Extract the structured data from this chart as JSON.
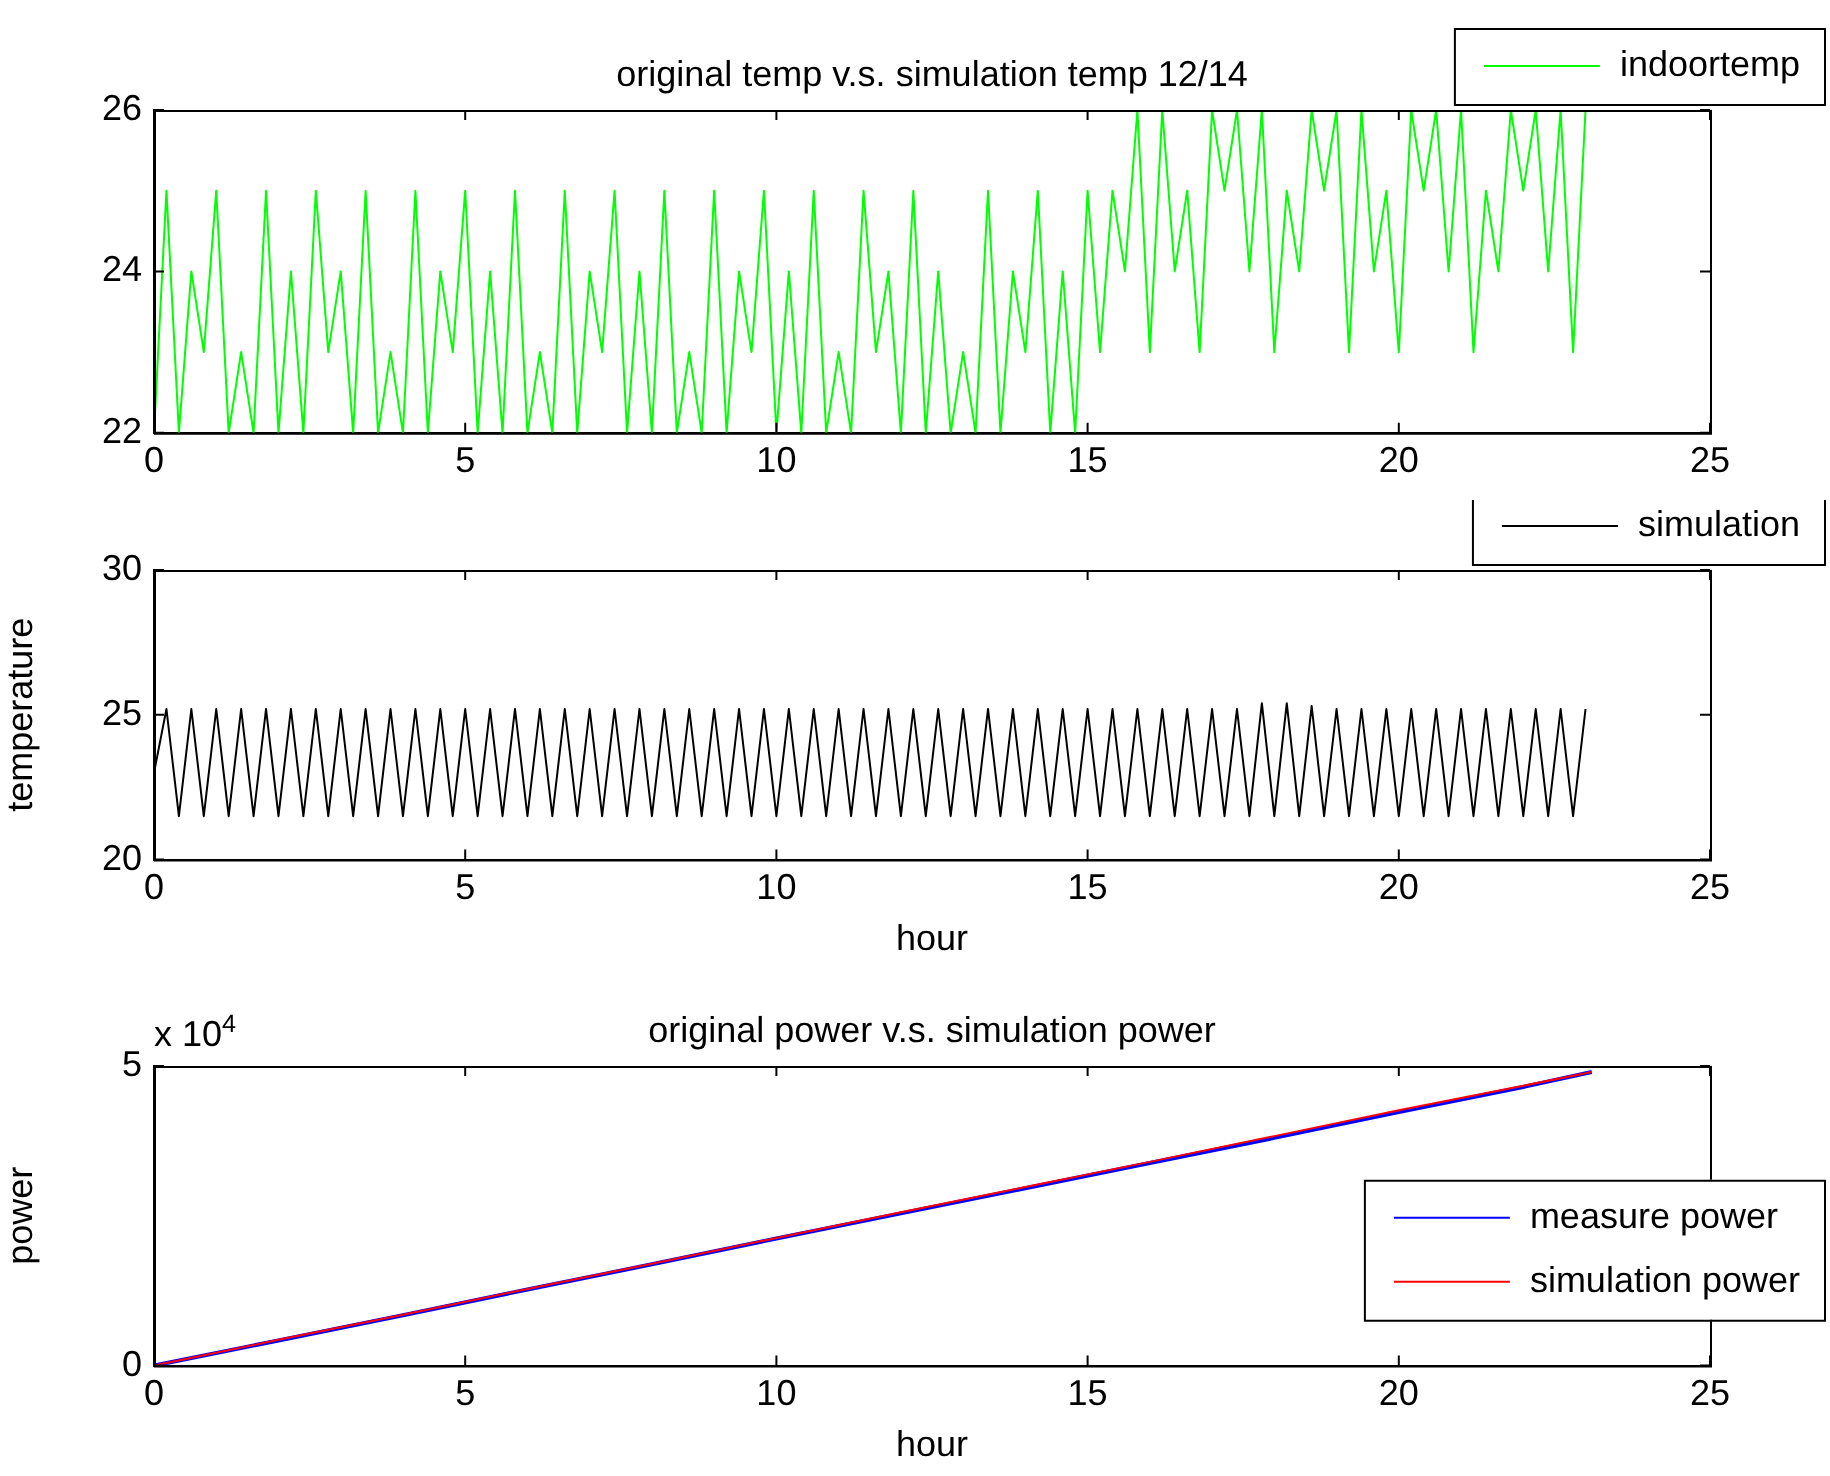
{
  "chart_data": [
    {
      "type": "line",
      "title": "original temp v.s. simulation temp 12/14",
      "legend": "top right",
      "grid": false,
      "x": [
        0,
        0.2,
        0.4,
        0.6,
        0.8,
        1,
        1.2,
        1.4,
        1.6,
        1.8,
        2,
        2.2,
        2.4,
        2.6,
        2.8,
        3,
        3.2,
        3.4,
        3.6,
        3.8,
        4,
        4.2,
        4.4,
        4.6,
        4.8,
        5,
        5.2,
        5.4,
        5.6,
        5.8,
        6,
        6.2,
        6.4,
        6.6,
        6.8,
        7,
        7.2,
        7.4,
        7.6,
        7.8,
        8,
        8.2,
        8.4,
        8.6,
        8.8,
        9,
        9.2,
        9.4,
        9.6,
        9.8,
        10,
        10.2,
        10.4,
        10.6,
        10.8,
        11,
        11.2,
        11.4,
        11.6,
        11.8,
        12,
        12.2,
        12.4,
        12.6,
        12.8,
        13,
        13.2,
        13.4,
        13.6,
        13.8,
        14,
        14.2,
        14.4,
        14.6,
        14.8,
        15,
        15.2,
        15.4,
        15.6,
        15.8,
        16,
        16.2,
        16.4,
        16.6,
        16.8,
        17,
        17.2,
        17.4,
        17.6,
        17.8,
        18,
        18.2,
        18.4,
        18.6,
        18.8,
        19,
        19.2,
        19.4,
        19.6,
        19.8,
        20,
        20.2,
        20.4,
        20.6,
        20.8,
        21,
        21.2,
        21.4,
        21.6,
        21.8,
        22,
        22.2,
        22.4,
        22.6,
        22.8,
        23
      ],
      "xlim": [
        0,
        25
      ],
      "xticks": [
        0,
        5,
        10,
        15,
        20,
        25
      ],
      "ylim": [
        22,
        26
      ],
      "yticks": [
        22,
        24,
        26
      ],
      "series": [
        {
          "name": "indoortemp",
          "color": "#00ff00",
          "values": [
            22,
            25,
            22,
            24,
            23,
            25,
            22,
            23,
            22,
            25,
            22,
            24,
            22,
            25,
            23,
            24,
            22,
            25,
            22,
            23,
            22,
            25,
            22,
            24,
            23,
            25,
            22,
            24,
            22,
            25,
            22,
            23,
            22,
            25,
            22,
            24,
            23,
            25,
            22,
            24,
            22,
            25,
            22,
            23,
            22,
            25,
            22,
            24,
            23,
            25,
            22,
            24,
            22,
            25,
            22,
            23,
            22,
            25,
            23,
            24,
            22,
            25,
            22,
            24,
            22,
            23,
            22,
            25,
            22,
            24,
            23,
            25,
            22,
            24,
            22,
            25,
            23,
            25,
            24,
            26,
            23,
            26,
            24,
            25,
            23,
            26,
            25,
            26,
            24,
            26,
            23,
            25,
            24,
            26,
            25,
            26,
            23,
            26,
            24,
            25,
            23,
            26,
            25,
            26,
            24,
            26,
            23,
            25,
            24,
            26,
            25,
            26,
            24,
            26,
            23,
            26
          ]
        }
      ]
    },
    {
      "type": "line",
      "legend": "top right",
      "grid": false,
      "xlabel": "hour",
      "ylabel": "temperature",
      "x": [
        0,
        0.2,
        0.4,
        0.6,
        0.8,
        1,
        1.2,
        1.4,
        1.6,
        1.8,
        2,
        2.2,
        2.4,
        2.6,
        2.8,
        3,
        3.2,
        3.4,
        3.6,
        3.8,
        4,
        4.2,
        4.4,
        4.6,
        4.8,
        5,
        5.2,
        5.4,
        5.6,
        5.8,
        6,
        6.2,
        6.4,
        6.6,
        6.8,
        7,
        7.2,
        7.4,
        7.6,
        7.8,
        8,
        8.2,
        8.4,
        8.6,
        8.8,
        9,
        9.2,
        9.4,
        9.6,
        9.8,
        10,
        10.2,
        10.4,
        10.6,
        10.8,
        11,
        11.2,
        11.4,
        11.6,
        11.8,
        12,
        12.2,
        12.4,
        12.6,
        12.8,
        13,
        13.2,
        13.4,
        13.6,
        13.8,
        14,
        14.2,
        14.4,
        14.6,
        14.8,
        15,
        15.2,
        15.4,
        15.6,
        15.8,
        16,
        16.2,
        16.4,
        16.6,
        16.8,
        17,
        17.2,
        17.4,
        17.6,
        17.8,
        18,
        18.2,
        18.4,
        18.6,
        18.8,
        19,
        19.2,
        19.4,
        19.6,
        19.8,
        20,
        20.2,
        20.4,
        20.6,
        20.8,
        21,
        21.2,
        21.4,
        21.6,
        21.8,
        22,
        22.2,
        22.4,
        22.6,
        22.8,
        23
      ],
      "xlim": [
        0,
        25
      ],
      "xticks": [
        0,
        5,
        10,
        15,
        20,
        25
      ],
      "ylim": [
        20,
        30
      ],
      "yticks": [
        20,
        25,
        30
      ],
      "series": [
        {
          "name": "simulation",
          "color": "#000000",
          "values": [
            23,
            25.2,
            21.5,
            25.2,
            21.5,
            25.2,
            21.5,
            25.2,
            21.5,
            25.2,
            21.5,
            25.2,
            21.5,
            25.2,
            21.5,
            25.2,
            21.5,
            25.2,
            21.5,
            25.2,
            21.5,
            25.2,
            21.5,
            25.2,
            21.5,
            25.2,
            21.5,
            25.2,
            21.5,
            25.2,
            21.5,
            25.2,
            21.5,
            25.2,
            21.5,
            25.2,
            21.5,
            25.2,
            21.5,
            25.2,
            21.5,
            25.2,
            21.5,
            25.2,
            21.5,
            25.2,
            21.5,
            25.2,
            21.5,
            25.2,
            21.5,
            25.2,
            21.5,
            25.2,
            21.5,
            25.2,
            21.5,
            25.2,
            21.5,
            25.2,
            21.5,
            25.2,
            21.5,
            25.2,
            21.5,
            25.2,
            21.5,
            25.2,
            21.5,
            25.2,
            21.5,
            25.2,
            21.5,
            25.2,
            21.5,
            25.2,
            21.5,
            25.2,
            21.5,
            25.2,
            21.5,
            25.2,
            21.5,
            25.2,
            21.5,
            25.2,
            21.5,
            25.2,
            21.5,
            25.4,
            21.5,
            25.4,
            21.5,
            25.3,
            21.5,
            25.2,
            21.5,
            25.2,
            21.5,
            25.2,
            21.5,
            25.2,
            21.5,
            25.2,
            21.5,
            25.2,
            21.5,
            25.2,
            21.5,
            25.2,
            21.5,
            25.2,
            21.5,
            25.2,
            21.5,
            25.2
          ]
        }
      ]
    },
    {
      "type": "line",
      "title": "original power v.s. simulation power",
      "legend": "right",
      "grid": false,
      "xlabel": "hour",
      "ylabel": "power",
      "annotations": [
        "x 10$^{4}$"
      ],
      "x": [
        0,
        2,
        4,
        6,
        8,
        10,
        12,
        14,
        16,
        18,
        20,
        22,
        23.1
      ],
      "xlim": [
        0,
        25
      ],
      "xticks": [
        0,
        5,
        10,
        15,
        20,
        25
      ],
      "ylim": [
        0,
        5
      ],
      "yticks": [
        0,
        5
      ],
      "series": [
        {
          "name": "measure power",
          "color": "#0000ff",
          "values": [
            0,
            0.42,
            0.84,
            1.27,
            1.69,
            2.12,
            2.54,
            2.96,
            3.38,
            3.8,
            4.23,
            4.65,
            4.9
          ]
        },
        {
          "name": "simulation power",
          "color": "#ff0000",
          "values": [
            0,
            0.43,
            0.85,
            1.28,
            1.7,
            2.13,
            2.56,
            2.98,
            3.4,
            3.83,
            4.26,
            4.67,
            4.9
          ]
        }
      ]
    }
  ]
}
